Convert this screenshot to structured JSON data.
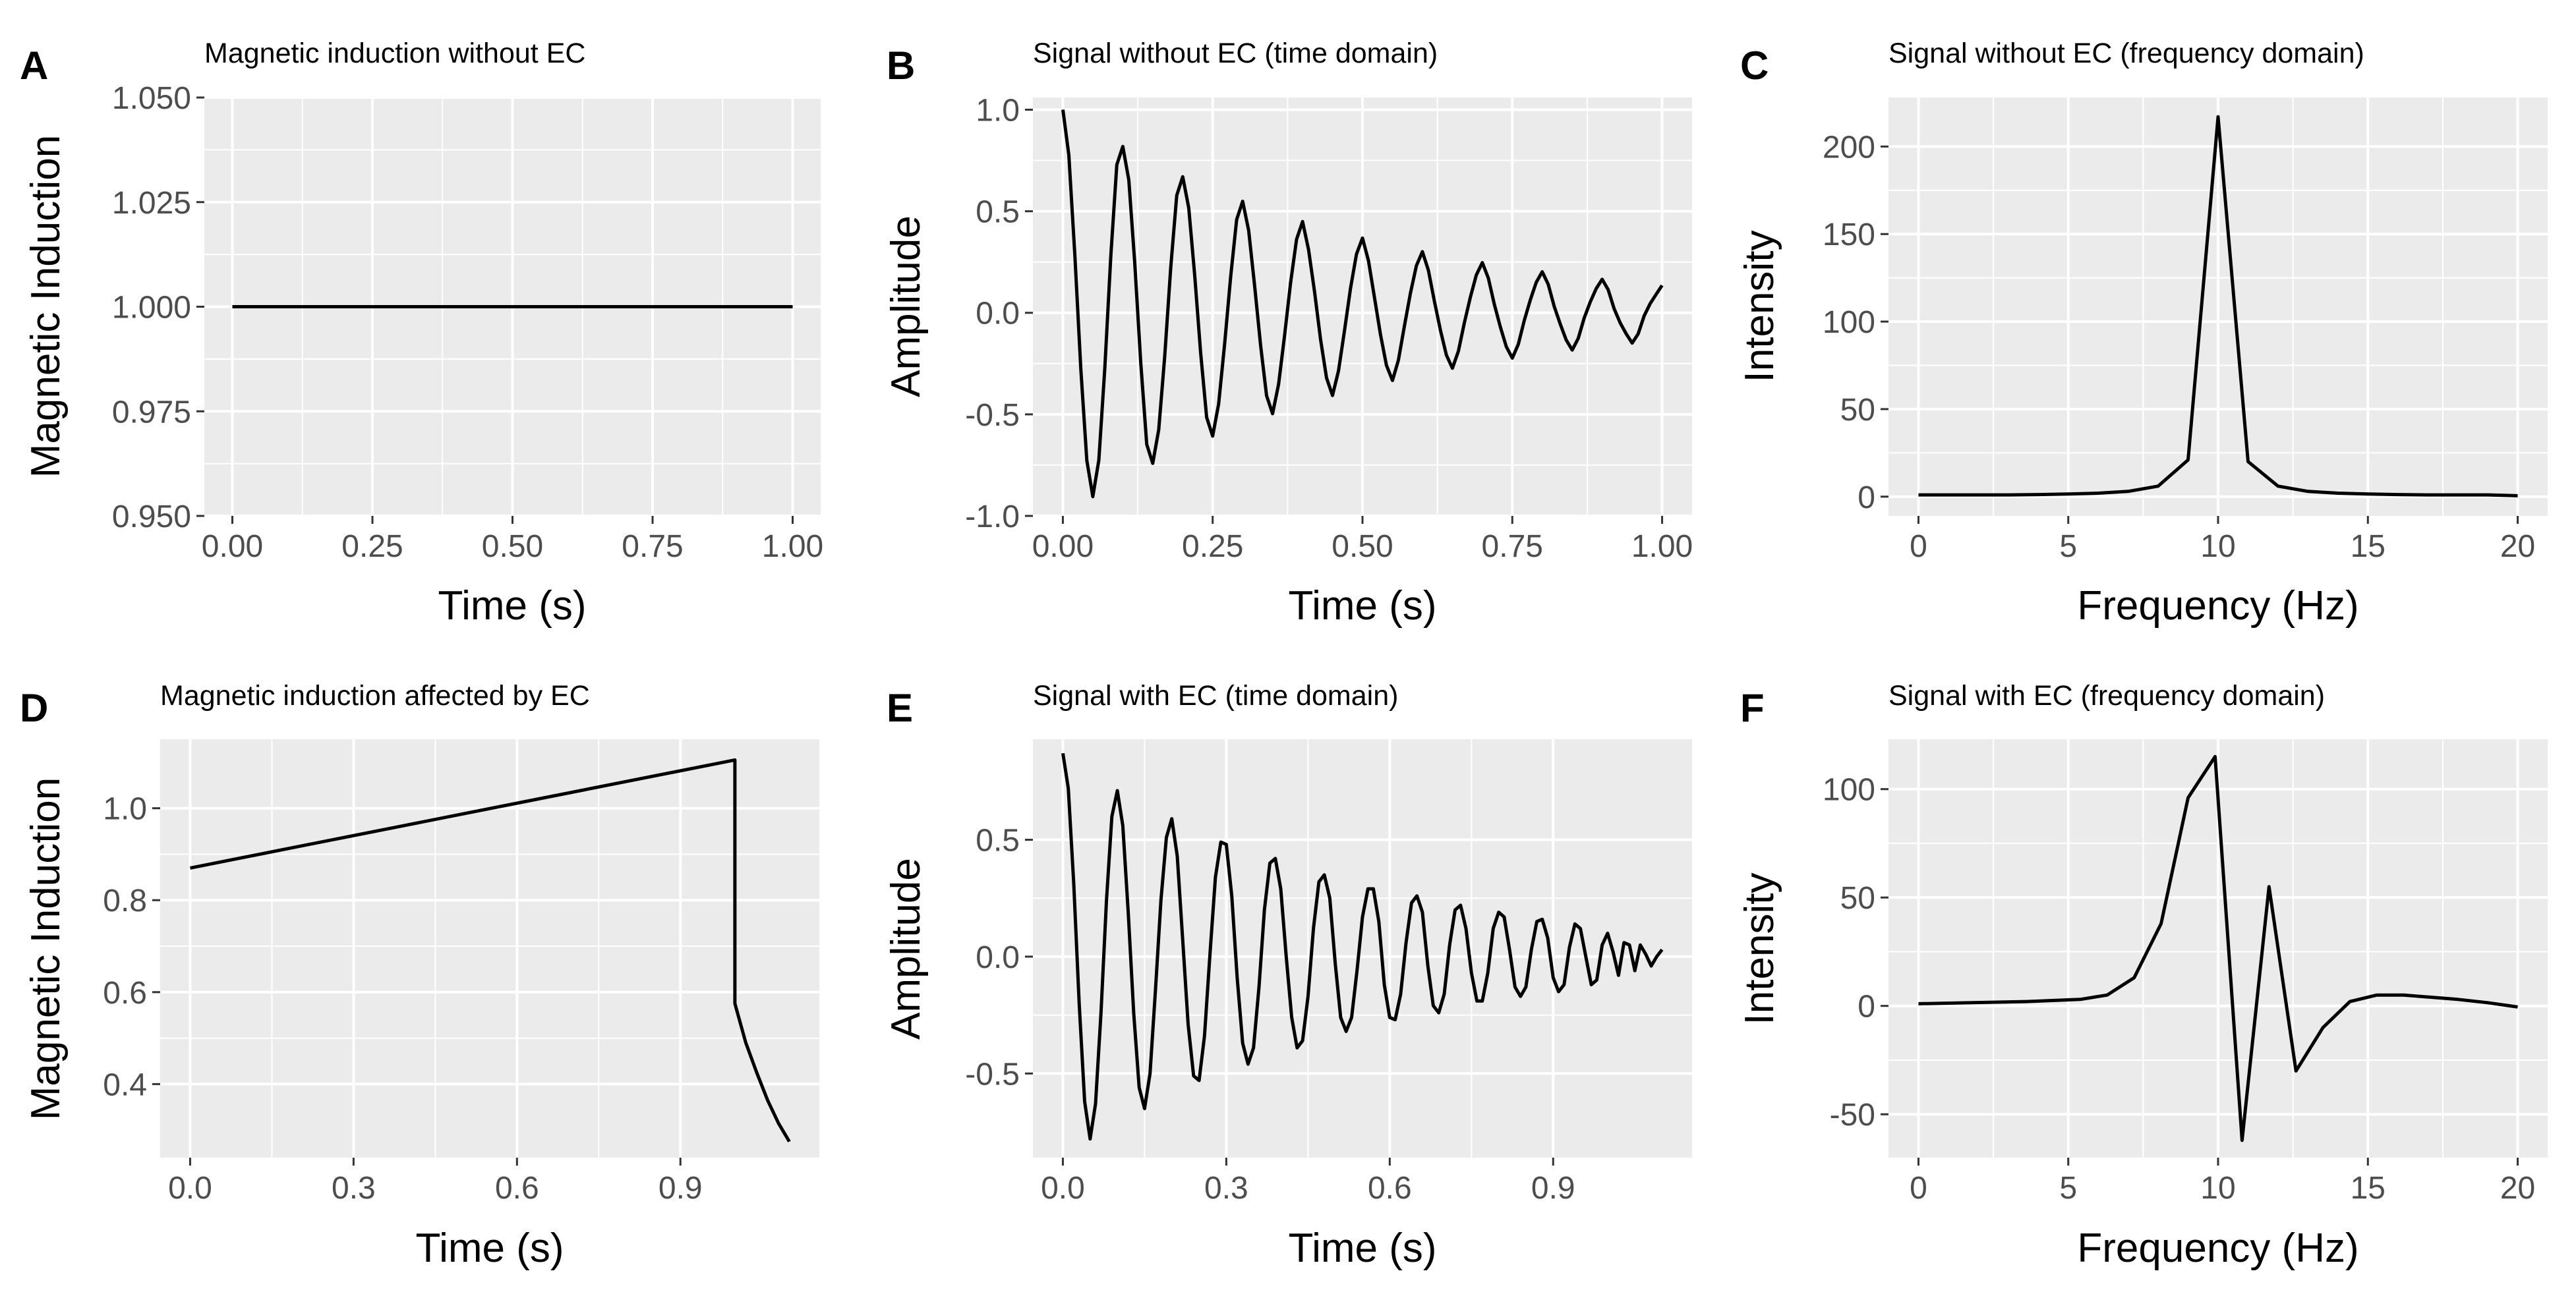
{
  "colors": {
    "panel_bg": "#ebebeb",
    "grid": "#ffffff",
    "line": "#000000",
    "tick_text": "#4d4d4d"
  },
  "chart_data": [
    {
      "id": "A",
      "type": "line",
      "title": "Magnetic induction without EC",
      "xlabel": "Time (s)",
      "ylabel": "Magnetic Induction",
      "xlim": [
        -0.05,
        1.05
      ],
      "ylim": [
        0.95,
        1.05
      ],
      "xticks": [
        0,
        0.25,
        0.5,
        0.75,
        1.0
      ],
      "xtick_labels": [
        "0.00",
        "0.25",
        "0.50",
        "0.75",
        "1.00"
      ],
      "yticks": [
        0.95,
        0.975,
        1.0,
        1.025,
        1.05
      ],
      "ytick_labels": [
        "0.950",
        "0.975",
        "1.000",
        "1.025",
        "1.050"
      ],
      "x": [
        0,
        1
      ],
      "y": [
        1.0,
        1.0
      ]
    },
    {
      "id": "B",
      "type": "line",
      "title": "Signal without EC (time domain)",
      "xlabel": "Time (s)",
      "ylabel": "Amplitude",
      "xlim": [
        -0.05,
        1.05
      ],
      "ylim": [
        -1.0,
        1.06
      ],
      "xticks": [
        0,
        0.25,
        0.5,
        0.75,
        1.0
      ],
      "xtick_labels": [
        "0.00",
        "0.25",
        "0.50",
        "0.75",
        "1.00"
      ],
      "yticks": [
        -1.0,
        -0.5,
        0.0,
        0.5,
        1.0
      ],
      "ytick_labels": [
        "-1.0",
        "-0.5",
        "0.0",
        "0.5",
        "1.0"
      ],
      "x": [
        0,
        0.01,
        0.02,
        0.03,
        0.04,
        0.05,
        0.06,
        0.07,
        0.08,
        0.09,
        0.1,
        0.11,
        0.12,
        0.13,
        0.14,
        0.15,
        0.16,
        0.17,
        0.18,
        0.19,
        0.2,
        0.21,
        0.22,
        0.23,
        0.24,
        0.25,
        0.26,
        0.27,
        0.28,
        0.29,
        0.3,
        0.31,
        0.32,
        0.33,
        0.34,
        0.35,
        0.36,
        0.37,
        0.38,
        0.39,
        0.4,
        0.41,
        0.42,
        0.43,
        0.44,
        0.45,
        0.46,
        0.47,
        0.48,
        0.49,
        0.5,
        0.51,
        0.52,
        0.53,
        0.54,
        0.55,
        0.56,
        0.57,
        0.58,
        0.59,
        0.6,
        0.61,
        0.62,
        0.63,
        0.64,
        0.65,
        0.66,
        0.67,
        0.68,
        0.69,
        0.7,
        0.71,
        0.72,
        0.73,
        0.74,
        0.75,
        0.76,
        0.77,
        0.78,
        0.79,
        0.8,
        0.81,
        0.82,
        0.83,
        0.84,
        0.85,
        0.86,
        0.87,
        0.88,
        0.89,
        0.9,
        0.91,
        0.92,
        0.93,
        0.94,
        0.95,
        0.96,
        0.97,
        0.98,
        0.99,
        1.0
      ],
      "y": [
        1.0,
        0.777,
        0.286,
        -0.277,
        -0.727,
        -0.905,
        -0.726,
        -0.272,
        0.28,
        0.729,
        0.819,
        0.654,
        0.246,
        -0.245,
        -0.648,
        -0.741,
        -0.575,
        -0.213,
        0.223,
        0.578,
        0.67,
        0.517,
        0.183,
        -0.198,
        -0.515,
        -0.607,
        -0.448,
        -0.152,
        0.177,
        0.459,
        0.549,
        0.406,
        0.132,
        -0.162,
        -0.408,
        -0.497,
        -0.352,
        -0.112,
        0.147,
        0.362,
        0.449,
        0.311,
        0.103,
        -0.131,
        -0.321,
        -0.407,
        -0.286,
        -0.088,
        0.12,
        0.289,
        0.368,
        0.256,
        0.075,
        -0.107,
        -0.259,
        -0.333,
        -0.233,
        -0.065,
        0.096,
        0.232,
        0.301,
        0.209,
        0.057,
        -0.085,
        -0.208,
        -0.273,
        -0.189,
        -0.05,
        0.076,
        0.186,
        0.247,
        0.171,
        0.042,
        -0.069,
        -0.167,
        -0.223,
        -0.155,
        -0.037,
        0.062,
        0.15,
        0.202,
        0.14,
        0.031,
        -0.055,
        -0.134,
        -0.183,
        -0.126,
        -0.025,
        0.053,
        0.119,
        0.165,
        0.114,
        0.02,
        -0.049,
        -0.103,
        -0.149,
        -0.104,
        -0.015,
        0.045,
        0.091,
        0.135
      ]
    },
    {
      "id": "C",
      "type": "line",
      "title": "Signal without EC (frequency domain)",
      "xlabel": "Frequency (Hz)",
      "ylabel": "Intensity",
      "xlim": [
        -1,
        21
      ],
      "ylim": [
        -11,
        228
      ],
      "xticks": [
        0,
        5,
        10,
        15,
        20
      ],
      "xtick_labels": [
        "0",
        "5",
        "10",
        "15",
        "20"
      ],
      "yticks": [
        0,
        50,
        100,
        150,
        200
      ],
      "ytick_labels": [
        "0",
        "50",
        "100",
        "150",
        "200"
      ],
      "x": [
        0,
        1,
        2,
        3,
        4,
        5,
        6,
        7,
        8,
        9,
        10,
        11,
        12,
        13,
        14,
        15,
        16,
        17,
        18,
        19,
        20
      ],
      "y": [
        1,
        1,
        1,
        1,
        1.2,
        1.5,
        2,
        3,
        6,
        21,
        217,
        20,
        6,
        3,
        2,
        1.5,
        1.2,
        1,
        1,
        1,
        0.5
      ]
    },
    {
      "id": "D",
      "type": "line",
      "title": "Magnetic induction affected by EC",
      "xlabel": "Time (s)",
      "ylabel": "Magnetic Induction",
      "xlim": [
        -0.055,
        1.155
      ],
      "ylim": [
        0.24,
        1.15
      ],
      "xticks": [
        0,
        0.3,
        0.6,
        0.9
      ],
      "xtick_labels": [
        "0.0",
        "0.3",
        "0.6",
        "0.9"
      ],
      "yticks": [
        0.4,
        0.6,
        0.8,
        1.0
      ],
      "ytick_labels": [
        "0.4",
        "0.6",
        "0.8",
        "1.0"
      ],
      "x": [
        0,
        0.2,
        0.4,
        0.6,
        0.8,
        1.0,
        1.0,
        1.02,
        1.04,
        1.06,
        1.08,
        1.1
      ],
      "y": [
        0.87,
        0.917,
        0.964,
        1.011,
        1.058,
        1.105,
        0.575,
        0.49,
        0.425,
        0.365,
        0.315,
        0.275
      ]
    },
    {
      "id": "E",
      "type": "line",
      "title": "Signal with EC (time domain)",
      "xlabel": "Time (s)",
      "ylabel": "Amplitude",
      "xlim": [
        -0.055,
        1.155
      ],
      "ylim": [
        -0.86,
        0.93
      ],
      "xticks": [
        0,
        0.3,
        0.6,
        0.9
      ],
      "xtick_labels": [
        "0.0",
        "0.3",
        "0.6",
        "0.9"
      ],
      "yticks": [
        -0.5,
        0.0,
        0.5
      ],
      "ytick_labels": [
        "-0.5",
        "0.0",
        "0.5"
      ],
      "x": [
        0,
        0.01,
        0.02,
        0.03,
        0.04,
        0.05,
        0.06,
        0.07,
        0.08,
        0.09,
        0.1,
        0.11,
        0.12,
        0.13,
        0.14,
        0.15,
        0.16,
        0.17,
        0.18,
        0.19,
        0.2,
        0.21,
        0.22,
        0.23,
        0.24,
        0.25,
        0.26,
        0.27,
        0.28,
        0.29,
        0.3,
        0.31,
        0.32,
        0.33,
        0.34,
        0.35,
        0.36,
        0.37,
        0.38,
        0.39,
        0.4,
        0.41,
        0.42,
        0.43,
        0.44,
        0.45,
        0.46,
        0.47,
        0.48,
        0.49,
        0.5,
        0.51,
        0.52,
        0.53,
        0.54,
        0.55,
        0.56,
        0.57,
        0.58,
        0.59,
        0.6,
        0.61,
        0.62,
        0.63,
        0.64,
        0.65,
        0.66,
        0.67,
        0.68,
        0.69,
        0.7,
        0.71,
        0.72,
        0.73,
        0.74,
        0.75,
        0.76,
        0.77,
        0.78,
        0.79,
        0.8,
        0.81,
        0.82,
        0.83,
        0.84,
        0.85,
        0.86,
        0.87,
        0.88,
        0.89,
        0.9,
        0.91,
        0.92,
        0.93,
        0.94,
        0.95,
        0.96,
        0.97,
        0.98,
        0.99,
        1.0,
        1.01,
        1.02,
        1.03,
        1.04,
        1.05,
        1.06,
        1.07,
        1.08,
        1.09,
        1.1
      ],
      "y": [
        0.87,
        0.72,
        0.31,
        -0.2,
        -0.62,
        -0.78,
        -0.63,
        -0.24,
        0.24,
        0.6,
        0.71,
        0.56,
        0.19,
        -0.24,
        -0.56,
        -0.65,
        -0.5,
        -0.14,
        0.24,
        0.51,
        0.59,
        0.43,
        0.07,
        -0.29,
        -0.51,
        -0.53,
        -0.34,
        0.01,
        0.34,
        0.49,
        0.48,
        0.26,
        -0.09,
        -0.37,
        -0.46,
        -0.39,
        -0.13,
        0.2,
        0.4,
        0.42,
        0.29,
        0.0,
        -0.26,
        -0.39,
        -0.36,
        -0.17,
        0.12,
        0.32,
        0.35,
        0.25,
        -0.03,
        -0.26,
        -0.32,
        -0.26,
        -0.06,
        0.17,
        0.29,
        0.29,
        0.15,
        -0.12,
        -0.26,
        -0.27,
        -0.16,
        0.06,
        0.23,
        0.26,
        0.19,
        -0.04,
        -0.21,
        -0.24,
        -0.16,
        0.05,
        0.2,
        0.22,
        0.12,
        -0.07,
        -0.19,
        -0.19,
        -0.07,
        0.12,
        0.19,
        0.17,
        0.03,
        -0.13,
        -0.17,
        -0.13,
        0.03,
        0.15,
        0.16,
        0.08,
        -0.09,
        -0.15,
        -0.12,
        0.04,
        0.14,
        0.12,
        0.0,
        -0.12,
        -0.1,
        0.05,
        0.1,
        0.02,
        -0.08,
        0.06,
        0.05,
        -0.06,
        0.05,
        0.01,
        -0.04,
        0.0,
        0.03
      ]
    },
    {
      "id": "F",
      "type": "line",
      "title": "Signal with EC (frequency domain)",
      "xlabel": "Frequency (Hz)",
      "ylabel": "Intensity",
      "xlim": [
        -1,
        21
      ],
      "ylim": [
        -70,
        123
      ],
      "xticks": [
        0,
        5,
        10,
        15,
        20
      ],
      "xtick_labels": [
        "0",
        "5",
        "10",
        "15",
        "20"
      ],
      "yticks": [
        -50,
        0,
        50,
        100
      ],
      "ytick_labels": [
        "-50",
        "0",
        "50",
        "100"
      ],
      "x": [
        0,
        1.8,
        3.6,
        5.4,
        6.3,
        7.2,
        8.1,
        9.0,
        9.9,
        10.8,
        11.7,
        12.6,
        13.5,
        14.4,
        15.3,
        16.2,
        17.1,
        18.0,
        19.0,
        20.0
      ],
      "y": [
        1,
        1.5,
        2,
        3,
        5,
        13,
        38,
        96,
        115,
        -62,
        55,
        -30,
        -10,
        2,
        5,
        5,
        4,
        3,
        1.5,
        -0.5
      ]
    }
  ]
}
